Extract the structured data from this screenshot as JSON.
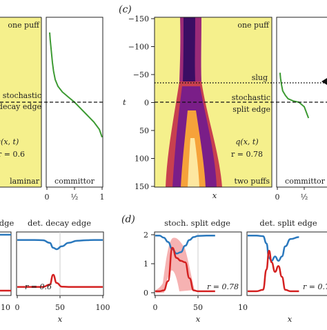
{
  "panel_c_label": "(c)",
  "panel_d_label": "(d)",
  "left_fragment": {
    "title_top": "one puff",
    "ann_stochastic": "stochastic",
    "ann_decay_edge": "decay edge",
    "ann_q": "q(x, t)",
    "ann_r": "r = 0.6",
    "title_bottom": "laminar",
    "committor_label": "committor",
    "x_ticks": [
      "0",
      "½",
      "1"
    ]
  },
  "panel_c": {
    "ylabel": "t",
    "xlabel": "x",
    "y_ticks": [
      "−150",
      "−100",
      "−50",
      "0",
      "50",
      "100",
      "150"
    ],
    "ann_one_puff": "one puff",
    "ann_slug": "slug",
    "ann_stochastic": "stochastic",
    "ann_split_edge": "split edge",
    "ann_q": "q(x, t)",
    "ann_r": "r = 0.78",
    "ann_two_puffs": "two puffs",
    "committor_label": "committor",
    "committor_ticks": [
      "0",
      "½"
    ]
  },
  "bottom_left": {
    "title_fragment": "edge",
    "title_det": "det. decay edge",
    "ann_r": "r = 0.6",
    "x_ticks": [
      "0",
      "50",
      "100"
    ],
    "x_ticks_fragment": [
      "10"
    ],
    "xlabel": "x"
  },
  "panel_d": {
    "title_stoch": "stoch. split edge",
    "title_det": "det. split edge",
    "y_ticks": [
      "0",
      "1",
      "2"
    ],
    "x_ticks": [
      "0",
      "50"
    ],
    "x_ticks_fragment": [
      "10"
    ],
    "xlabel": "x",
    "ann_r": "r = 0.78",
    "ann_r_fragment": "r = 0.7"
  },
  "colors": {
    "panel_bg": "#f5f08c",
    "committor_line": "#3c9a32",
    "blue_curve": "#2a78bd",
    "red_curve": "#d42020",
    "red_shade": "#f4a4a4"
  },
  "chart_data": [
    {
      "type": "line",
      "name": "committor profile (left panel, partial)",
      "x": [
        0.05,
        0.06,
        0.08,
        0.1,
        0.12,
        0.15,
        0.2,
        0.28,
        0.4,
        0.5,
        0.6,
        0.72,
        0.85,
        0.95,
        1.0
      ],
      "y": [
        -123,
        -110,
        -90,
        -70,
        -55,
        -40,
        -28,
        -18,
        -8,
        0,
        10,
        22,
        35,
        48,
        62
      ],
      "xlim": [
        0,
        1
      ],
      "ylim": [
        150,
        -150
      ]
    },
    {
      "type": "heatmap",
      "name": "q(x, t) space-time plot",
      "xlabel": "x",
      "ylabel": "t",
      "ylim": [
        -150,
        150
      ]
    },
    {
      "type": "line",
      "name": "committor profile (panel c, partial)",
      "x": [
        0.05,
        0.06,
        0.08,
        0.1,
        0.15,
        0.2,
        0.3,
        0.4,
        0.5,
        0.58
      ],
      "y": [
        -52,
        -42,
        -30,
        -20,
        -12,
        -6,
        -2,
        0,
        8,
        28
      ],
      "xlim": [
        0,
        1
      ],
      "ylim": [
        150,
        -150
      ]
    },
    {
      "type": "line",
      "name": "det. decay edge",
      "x": [
        0,
        20,
        30,
        38,
        42,
        46,
        52,
        60,
        70,
        80,
        90,
        100
      ],
      "series": [
        {
          "values": [
            1.82,
            1.82,
            1.81,
            1.72,
            1.55,
            1.5,
            1.6,
            1.72,
            1.79,
            1.81,
            1.82,
            1.82
          ]
        },
        {
          "values": [
            0.2,
            0.2,
            0.2,
            0.28,
            0.62,
            0.34,
            0.21,
            0.2,
            0.2,
            0.2,
            0.2,
            0.2
          ]
        }
      ],
      "xlim": [
        0,
        100
      ],
      "ylim": [
        0,
        2.2
      ]
    },
    {
      "type": "line",
      "name": "stoch. split edge",
      "x": [
        0,
        5,
        10,
        15,
        20,
        25,
        30,
        35,
        40,
        45,
        50,
        60,
        70
      ],
      "series": [
        {
          "values": [
            1.97,
            1.97,
            1.9,
            1.75,
            1.5,
            1.35,
            1.4,
            1.62,
            1.82,
            1.92,
            1.96,
            1.97,
            1.97
          ]
        },
        {
          "values": [
            0.05,
            0.05,
            0.08,
            0.4,
            1.55,
            1.2,
            1.1,
            1.05,
            0.5,
            0.08,
            0.05,
            0.05,
            0.05
          ]
        }
      ],
      "xlim": [
        0,
        70
      ],
      "ylim": [
        0,
        2.2
      ]
    },
    {
      "type": "line",
      "name": "det. split edge",
      "x": [
        0,
        10,
        18,
        22,
        25,
        28,
        32,
        36,
        40,
        44,
        50,
        60
      ],
      "series": [
        {
          "values": [
            1.97,
            1.97,
            1.95,
            1.7,
            1.2,
            1.1,
            1.25,
            1.1,
            1.25,
            1.6,
            1.85,
            1.92
          ]
        },
        {
          "values": [
            0.05,
            0.05,
            0.1,
            0.8,
            1.45,
            1.05,
            0.72,
            0.92,
            0.55,
            0.1,
            0.05,
            0.05
          ]
        }
      ],
      "xlim": [
        0,
        60
      ],
      "ylim": [
        0,
        2.2
      ]
    }
  ]
}
